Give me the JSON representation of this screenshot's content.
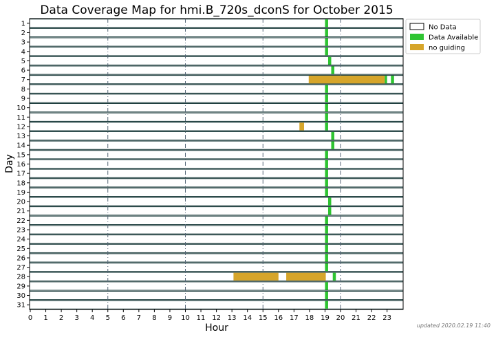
{
  "chart_data": {
    "type": "bar",
    "orientation": "horizontal-timeline",
    "title": "Data Coverage Map for hmi.B_720s_dconS for October 2015",
    "xlabel": "Hour",
    "ylabel": "Day",
    "xlim": [
      0,
      24
    ],
    "x_ticks": [
      0,
      1,
      2,
      3,
      4,
      5,
      6,
      7,
      8,
      9,
      10,
      11,
      12,
      13,
      14,
      15,
      16,
      17,
      18,
      19,
      20,
      21,
      22,
      23
    ],
    "y_categories": [
      "1",
      "2",
      "3",
      "4",
      "5",
      "6",
      "7",
      "8",
      "9",
      "10",
      "11",
      "12",
      "13",
      "14",
      "15",
      "16",
      "17",
      "18",
      "19",
      "20",
      "21",
      "22",
      "23",
      "24",
      "25",
      "26",
      "27",
      "28",
      "29",
      "30",
      "31"
    ],
    "dashed_gridlines_x": [
      5,
      10,
      15,
      20
    ],
    "legend": {
      "placement": "outside-top-right",
      "entries": [
        {
          "key": "no_data",
          "label": "No Data",
          "color": "#ffffff"
        },
        {
          "key": "available",
          "label": "Data Available",
          "color": "#2ec431"
        },
        {
          "key": "no_guiding",
          "label": "no guiding",
          "color": "#d6a52a"
        }
      ]
    },
    "colors": {
      "available": "#2ec431",
      "no_guiding": "#d6a52a",
      "row_band": "#1f3f3f",
      "dashed_grid": "#556677"
    },
    "segments": [
      {
        "day": 1,
        "start": 19.0,
        "end": 19.2,
        "status": "available"
      },
      {
        "day": 2,
        "start": 19.0,
        "end": 19.2,
        "status": "available"
      },
      {
        "day": 3,
        "start": 19.0,
        "end": 19.2,
        "status": "available"
      },
      {
        "day": 4,
        "start": 19.0,
        "end": 19.2,
        "status": "available"
      },
      {
        "day": 5,
        "start": 19.2,
        "end": 19.4,
        "status": "available"
      },
      {
        "day": 6,
        "start": 19.4,
        "end": 19.6,
        "status": "available"
      },
      {
        "day": 7,
        "start": 17.95,
        "end": 22.85,
        "status": "no_guiding"
      },
      {
        "day": 7,
        "start": 22.85,
        "end": 23.0,
        "status": "available"
      },
      {
        "day": 7,
        "start": 23.25,
        "end": 23.45,
        "status": "available"
      },
      {
        "day": 8,
        "start": 19.0,
        "end": 19.2,
        "status": "available"
      },
      {
        "day": 9,
        "start": 19.0,
        "end": 19.2,
        "status": "available"
      },
      {
        "day": 10,
        "start": 19.0,
        "end": 19.2,
        "status": "available"
      },
      {
        "day": 11,
        "start": 19.0,
        "end": 19.2,
        "status": "available"
      },
      {
        "day": 12,
        "start": 17.35,
        "end": 17.65,
        "status": "no_guiding"
      },
      {
        "day": 12,
        "start": 19.0,
        "end": 19.2,
        "status": "available"
      },
      {
        "day": 13,
        "start": 19.4,
        "end": 19.6,
        "status": "available"
      },
      {
        "day": 14,
        "start": 19.4,
        "end": 19.6,
        "status": "available"
      },
      {
        "day": 15,
        "start": 19.0,
        "end": 19.2,
        "status": "available"
      },
      {
        "day": 16,
        "start": 19.0,
        "end": 19.2,
        "status": "available"
      },
      {
        "day": 17,
        "start": 19.0,
        "end": 19.2,
        "status": "available"
      },
      {
        "day": 18,
        "start": 19.0,
        "end": 19.2,
        "status": "available"
      },
      {
        "day": 19,
        "start": 19.0,
        "end": 19.2,
        "status": "available"
      },
      {
        "day": 20,
        "start": 19.2,
        "end": 19.4,
        "status": "available"
      },
      {
        "day": 21,
        "start": 19.2,
        "end": 19.4,
        "status": "available"
      },
      {
        "day": 22,
        "start": 19.0,
        "end": 19.2,
        "status": "available"
      },
      {
        "day": 23,
        "start": 19.0,
        "end": 19.2,
        "status": "available"
      },
      {
        "day": 24,
        "start": 19.0,
        "end": 19.2,
        "status": "available"
      },
      {
        "day": 25,
        "start": 19.0,
        "end": 19.2,
        "status": "available"
      },
      {
        "day": 26,
        "start": 19.0,
        "end": 19.2,
        "status": "available"
      },
      {
        "day": 27,
        "start": 19.0,
        "end": 19.2,
        "status": "available"
      },
      {
        "day": 28,
        "start": 13.1,
        "end": 16.0,
        "status": "no_guiding"
      },
      {
        "day": 28,
        "start": 16.5,
        "end": 19.05,
        "status": "no_guiding"
      },
      {
        "day": 28,
        "start": 19.5,
        "end": 19.7,
        "status": "available"
      },
      {
        "day": 29,
        "start": 19.0,
        "end": 19.2,
        "status": "available"
      },
      {
        "day": 30,
        "start": 19.0,
        "end": 19.2,
        "status": "available"
      },
      {
        "day": 31,
        "start": 19.0,
        "end": 19.2,
        "status": "available"
      }
    ]
  },
  "footer": {
    "updated_text": "updated 2020.02.19 11:40"
  }
}
